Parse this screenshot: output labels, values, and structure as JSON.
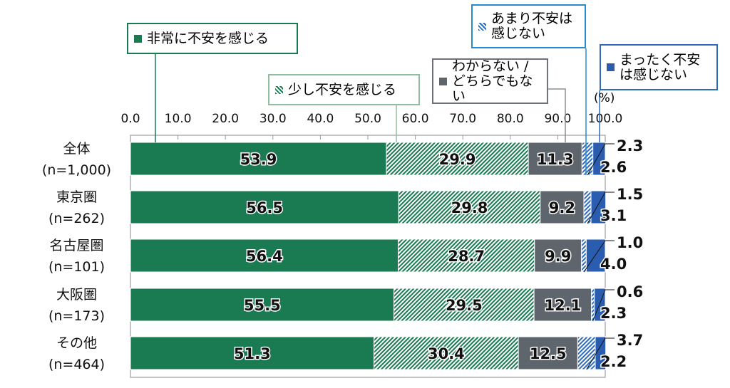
{
  "chart_data": {
    "type": "bar",
    "orientation": "horizontal",
    "stacked": true,
    "unit_label": "(%)",
    "xlim": [
      0,
      100
    ],
    "xticks": [
      "0.0",
      "10.0",
      "20.0",
      "30.0",
      "40.0",
      "50.0",
      "60.0",
      "70.0",
      "80.0",
      "90.0",
      "100.0"
    ],
    "categories": [
      {
        "name": "全体",
        "n": "(n=1,000)"
      },
      {
        "name": "東京圏",
        "n": "(n=262)"
      },
      {
        "name": "名古屋圏",
        "n": "(n=101)"
      },
      {
        "name": "大阪圏",
        "n": "(n=173)"
      },
      {
        "name": "その他",
        "n": "(n=464)"
      }
    ],
    "series": [
      {
        "name": "非常に不安を感じる",
        "color": "#1a7a52",
        "pattern": "solid",
        "values": [
          53.9,
          56.5,
          56.4,
          55.5,
          51.3
        ]
      },
      {
        "name": "少し不安を感じる",
        "color": "#1a7a52",
        "pattern": "hatch",
        "values": [
          29.9,
          29.8,
          28.7,
          29.5,
          30.4
        ]
      },
      {
        "name": "わからない / どちらでもない",
        "color": "#5f656c",
        "pattern": "solid",
        "values": [
          11.3,
          9.2,
          9.9,
          12.1,
          12.5
        ]
      },
      {
        "name": "あまり不安は感じない",
        "color": "#2f6cc0",
        "pattern": "hatch",
        "values": [
          2.3,
          1.5,
          1.0,
          0.6,
          3.7
        ]
      },
      {
        "name": "まったく不安は感じない",
        "color": "#2a5db0",
        "pattern": "solid",
        "values": [
          2.6,
          3.1,
          4.0,
          2.3,
          2.2
        ]
      }
    ],
    "legend_placement": "top, callouts",
    "grid": false
  }
}
